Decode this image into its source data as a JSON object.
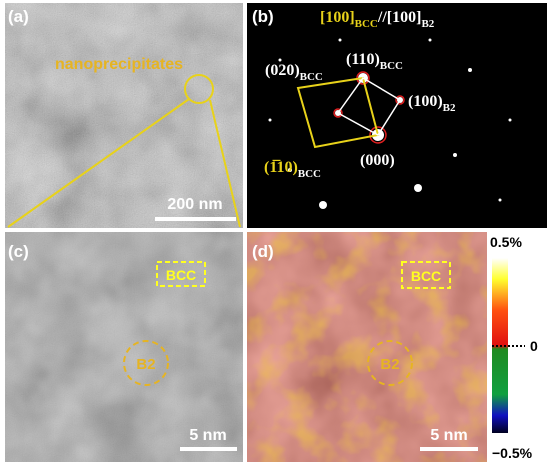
{
  "panels": {
    "a": {
      "label": "(a)",
      "annotation": "nanoprecipitates",
      "scale_bar": "200 nm"
    },
    "b": {
      "label": "(b)",
      "zone_axis": [
        {
          "main": "[100]",
          "sub": "BCC"
        },
        {
          "main": "//[100]",
          "sub": "B2"
        }
      ],
      "spots": [
        {
          "main": "(020)",
          "sub": "BCC"
        },
        {
          "main": "(110)",
          "sub": "BCC"
        },
        {
          "main": "(100)",
          "sub": "B2"
        },
        {
          "main": "(000)"
        },
        {
          "main": "(1̅10)",
          "sub": "BCC"
        }
      ]
    },
    "c": {
      "label": "(c)",
      "box_label": "BCC",
      "circle_label": "B2",
      "scale_bar": "5 nm"
    },
    "d": {
      "label": "(d)",
      "box_label": "BCC",
      "circle_label": "B2",
      "scale_bar": "5 nm"
    }
  },
  "colorbar": {
    "labels": [
      "0.5%",
      "0",
      "−0.5%"
    ]
  }
}
